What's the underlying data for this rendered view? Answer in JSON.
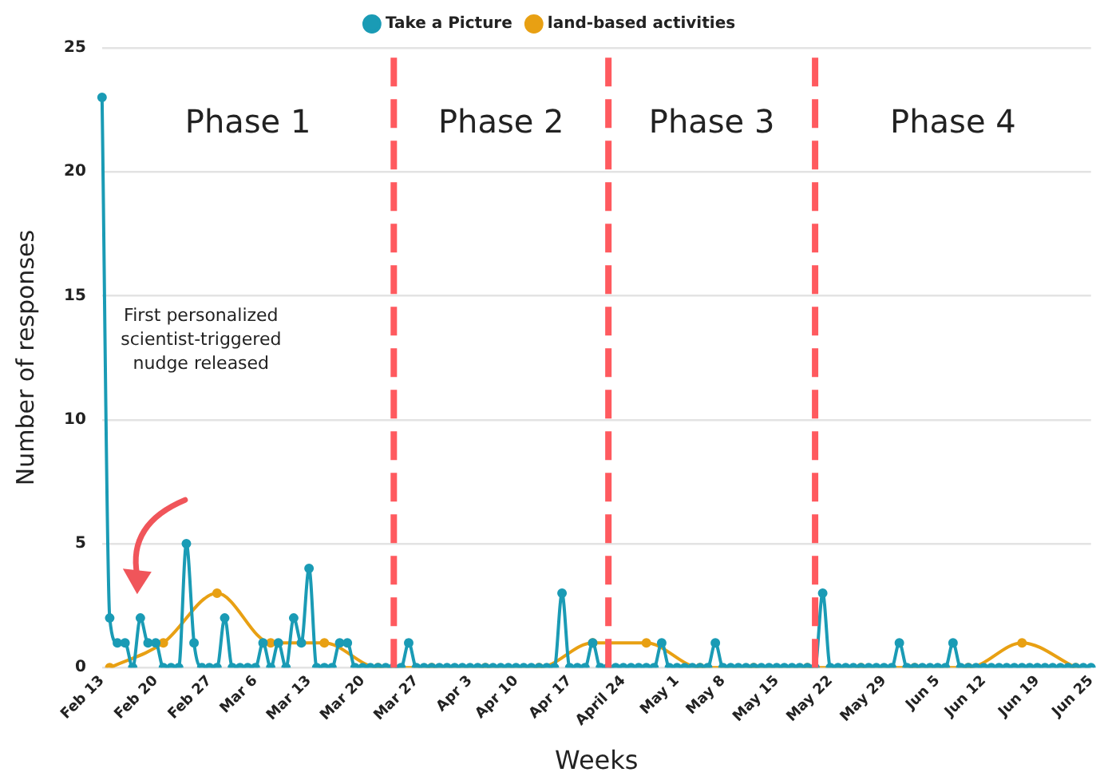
{
  "chart_data": {
    "type": "line",
    "xlabel": "Weeks",
    "ylabel": "Number of responses",
    "categories": [
      "Feb 13",
      null,
      null,
      null,
      null,
      null,
      null,
      "Feb 20",
      null,
      null,
      null,
      null,
      null,
      null,
      "Feb 27",
      null,
      null,
      null,
      null,
      null,
      "Mar 6",
      null,
      null,
      null,
      null,
      null,
      null,
      "Mar 13",
      null,
      null,
      null,
      null,
      null,
      null,
      "Mar 20",
      null,
      null,
      null,
      null,
      null,
      null,
      "Mar 27",
      null,
      null,
      null,
      null,
      null,
      null,
      "Apr 3",
      null,
      null,
      null,
      null,
      null,
      "Apr 10",
      null,
      null,
      null,
      null,
      null,
      null,
      "Apr 17",
      null,
      null,
      null,
      null,
      null,
      null,
      "April 24",
      null,
      null,
      null,
      null,
      null,
      null,
      "May 1",
      null,
      null,
      null,
      null,
      null,
      "May 8",
      null,
      null,
      null,
      null,
      null,
      null,
      "May 15",
      null,
      null,
      null,
      null,
      null,
      null,
      "May 22",
      null,
      null,
      null,
      null,
      null,
      null,
      "May 29",
      null,
      null,
      null,
      null,
      null,
      null,
      "Jun 5",
      null,
      null,
      null,
      null,
      null,
      "Jun 12",
      null,
      null,
      null,
      null,
      null,
      null,
      "Jun 19",
      null,
      null,
      null,
      null,
      null,
      null,
      "Jun 25"
    ],
    "series": [
      {
        "name": "Take a Picture",
        "color": "#1a9bb5",
        "values": [
          23,
          2,
          1,
          1,
          0,
          2,
          1,
          1,
          0,
          0,
          0,
          5,
          1,
          0,
          0,
          0,
          2,
          0,
          0,
          0,
          0,
          1,
          0,
          1,
          0,
          2,
          1,
          4,
          0,
          0,
          0,
          1,
          1,
          0,
          0,
          0,
          0,
          0,
          0,
          0,
          1,
          0,
          0,
          0,
          0,
          0,
          0,
          0,
          0,
          0,
          0,
          0,
          0,
          0,
          0,
          0,
          0,
          0,
          0,
          0,
          3,
          0,
          0,
          0,
          1,
          0,
          0,
          0,
          0,
          0,
          0,
          0,
          0,
          1,
          0,
          0,
          0,
          0,
          0,
          0,
          1,
          0,
          0,
          0,
          0,
          0,
          0,
          0,
          0,
          0,
          0,
          0,
          0,
          0,
          3,
          0,
          0,
          0,
          0,
          0,
          0,
          0,
          0,
          0,
          1,
          0,
          0,
          0,
          0,
          0,
          0,
          1,
          0,
          0,
          0,
          0,
          0,
          0,
          0,
          0,
          0,
          0,
          0,
          0,
          0,
          0,
          0,
          0,
          0,
          0
        ]
      },
      {
        "name": "land-based activities",
        "color": "#e8a013",
        "values": [
          null,
          0,
          null,
          null,
          null,
          null,
          null,
          null,
          1,
          null,
          null,
          null,
          null,
          null,
          null,
          3,
          null,
          null,
          null,
          null,
          null,
          null,
          1,
          null,
          null,
          null,
          null,
          null,
          null,
          1,
          null,
          null,
          null,
          null,
          null,
          null,
          0,
          null,
          null,
          null,
          null,
          null,
          null,
          0,
          null,
          null,
          null,
          null,
          null,
          null,
          0,
          null,
          null,
          null,
          null,
          null,
          null,
          0,
          null,
          null,
          null,
          null,
          null,
          null,
          1,
          null,
          null,
          null,
          null,
          null,
          null,
          1,
          null,
          null,
          null,
          null,
          null,
          null,
          0,
          null,
          null,
          null,
          null,
          null,
          null,
          0,
          null,
          null,
          null,
          null,
          null,
          null,
          0,
          null,
          null,
          null,
          null,
          null,
          null,
          0,
          null,
          null,
          null,
          null,
          null,
          null,
          0,
          null,
          null,
          null,
          null,
          null,
          null,
          0,
          null,
          null,
          null,
          null,
          null,
          null,
          1,
          null,
          null,
          null,
          null,
          null,
          null,
          0,
          null,
          null
        ]
      }
    ],
    "ylim": [
      0,
      25
    ],
    "yticks": [
      0,
      5,
      10,
      15,
      20,
      25
    ],
    "grid": "y",
    "legend": "top",
    "marker": "circle",
    "line_style": "solid",
    "annotations": [
      "Phase 1",
      "Phase 2",
      "Phase 3",
      "Phase 4",
      "First personalized scientist-triggered nudge released"
    ]
  }
}
